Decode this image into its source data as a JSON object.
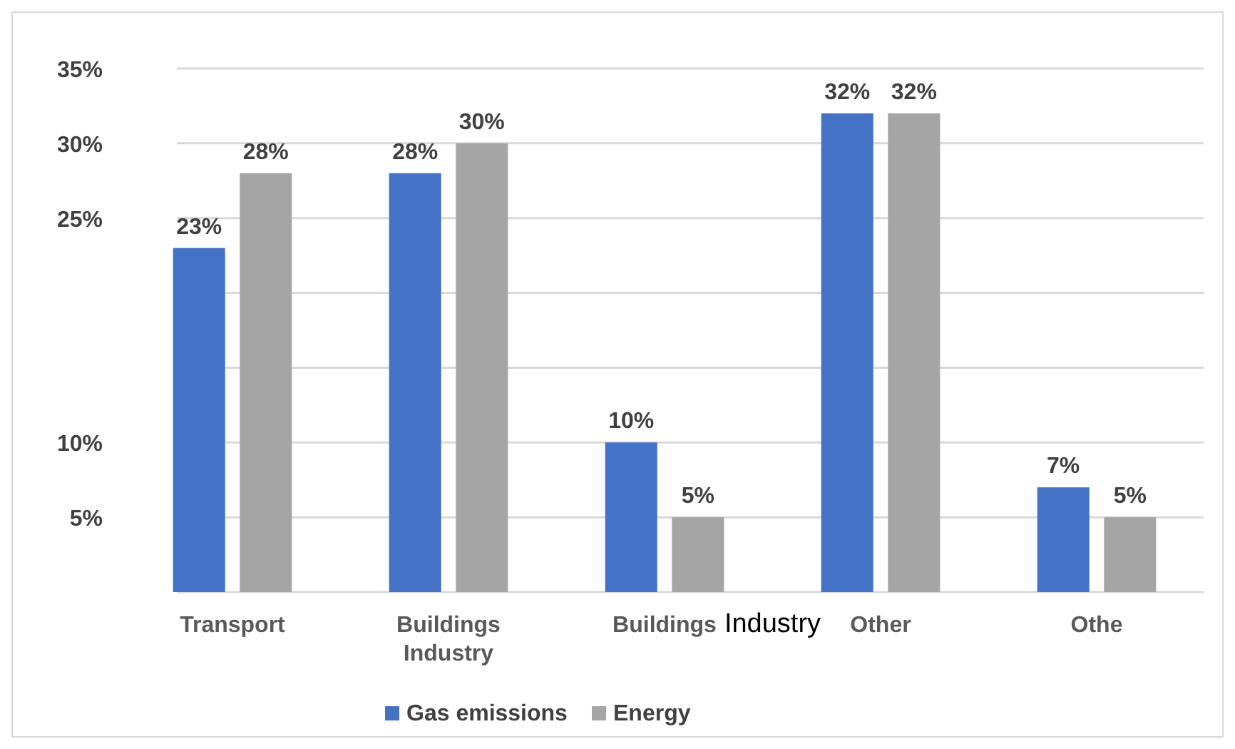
{
  "chart_data": {
    "type": "bar",
    "categories": [
      "Transport",
      "Buildings\nIndustry",
      "Buildings",
      "Other",
      "Othe"
    ],
    "series": [
      {
        "name": "Gas emissions",
        "color": "#4472c4",
        "values": [
          23,
          28,
          10,
          32,
          7
        ],
        "value_labels": [
          "23%",
          "28%",
          "10%",
          "32%",
          "7%"
        ]
      },
      {
        "name": "Energy",
        "color": "#a5a5a5",
        "values": [
          28,
          30,
          5,
          32,
          5
        ],
        "value_labels": [
          "28%",
          "30%",
          "5%",
          "32%",
          "5%"
        ]
      }
    ],
    "ylim": [
      0,
      35
    ],
    "yticks": [
      {
        "value": 0,
        "label": null
      },
      {
        "value": 5,
        "label": "5%"
      },
      {
        "value": 10,
        "label": "10%"
      },
      {
        "value": 15,
        "label": null
      },
      {
        "value": 20,
        "label": null
      },
      {
        "value": 25,
        "label": "25%"
      },
      {
        "value": 30,
        "label": "30%"
      },
      {
        "value": 35,
        "label": "35%"
      }
    ],
    "grid": "y",
    "legend": "bottom",
    "annotations": [
      "Industry"
    ]
  }
}
